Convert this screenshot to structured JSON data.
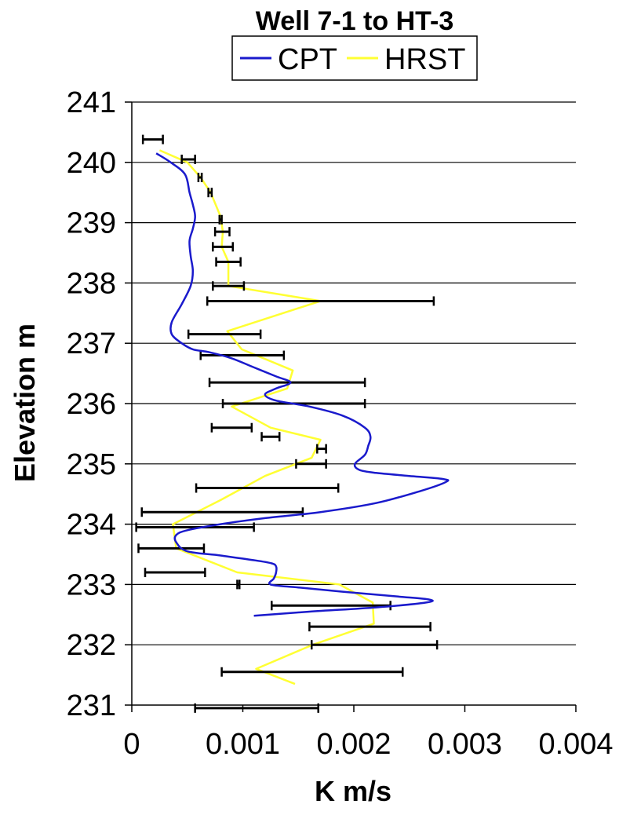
{
  "chart_data": {
    "type": "line",
    "title": "Well 7-1 to HT-3",
    "xlabel": "K m/s",
    "ylabel": "Elevation m",
    "xlim": [
      0,
      0.004
    ],
    "ylim": [
      231,
      241
    ],
    "x_ticks": [
      "0",
      "0.001",
      "0.002",
      "0.003",
      "0.004"
    ],
    "y_ticks": [
      "231",
      "232",
      "233",
      "234",
      "235",
      "236",
      "237",
      "238",
      "239",
      "240",
      "241"
    ],
    "grid": "horizontal",
    "legend_position": "top",
    "colors": {
      "CPT": "#1a1acc",
      "HRST": "#ffff33",
      "error_bars": "#000000",
      "grid": "#000000"
    },
    "series": [
      {
        "name": "CPT",
        "x": [
          0.00022,
          0.00035,
          0.00048,
          0.00052,
          0.00055,
          0.00057,
          0.00055,
          0.00052,
          0.00053,
          0.00055,
          0.00053,
          0.00045,
          0.00036,
          0.00036,
          0.00045,
          0.00055,
          0.0007,
          0.0009,
          0.0011,
          0.0013,
          0.00143,
          0.0013,
          0.0012,
          0.0013,
          0.0016,
          0.0019,
          0.0021,
          0.00215,
          0.00213,
          0.0021,
          0.00201,
          0.00205,
          0.0022,
          0.0025,
          0.0028,
          0.00283,
          0.0026,
          0.0022,
          0.0017,
          0.0012,
          0.0008,
          0.0005,
          0.0004,
          0.0004,
          0.0005,
          0.0008,
          0.00111,
          0.00126,
          0.0013,
          0.0013,
          0.00128,
          0.00125,
          0.0015,
          0.0019,
          0.0024,
          0.00268,
          0.00265,
          0.0022,
          0.0016,
          0.0011
        ],
        "y": [
          240.15,
          240.0,
          239.8,
          239.5,
          239.3,
          239.1,
          238.9,
          238.7,
          238.45,
          238.2,
          237.95,
          237.65,
          237.35,
          237.15,
          237.0,
          236.9,
          236.85,
          236.75,
          236.6,
          236.45,
          236.35,
          236.25,
          236.15,
          236.05,
          235.95,
          235.8,
          235.6,
          235.45,
          235.3,
          235.15,
          235.0,
          234.9,
          234.85,
          234.8,
          234.75,
          234.7,
          234.55,
          234.35,
          234.2,
          234.1,
          234.0,
          233.9,
          233.82,
          233.7,
          233.55,
          233.48,
          233.4,
          233.35,
          233.3,
          233.2,
          233.1,
          233.0,
          232.95,
          232.88,
          232.8,
          232.75,
          232.7,
          232.62,
          232.55,
          232.48
        ]
      },
      {
        "name": "HRST",
        "x": [
          0.00025,
          0.0005,
          0.00062,
          0.00071,
          0.0008,
          0.00082,
          0.00081,
          0.00087,
          0.00087,
          0.0017,
          0.00086,
          0.00099,
          0.00145,
          0.0014,
          0.0009,
          0.00125,
          0.0017,
          0.00162,
          0.0012,
          0.0008,
          0.00037,
          0.0004,
          0.00095,
          0.00187,
          0.00217,
          0.00218,
          0.00163,
          0.00112,
          0.00147
        ],
        "y": [
          240.2,
          240.0,
          239.75,
          239.5,
          239.1,
          238.85,
          238.6,
          238.35,
          237.95,
          237.7,
          237.2,
          236.9,
          236.55,
          236.25,
          235.95,
          235.6,
          235.4,
          235.1,
          234.8,
          234.4,
          234.0,
          233.6,
          233.2,
          233.0,
          232.7,
          232.35,
          232.0,
          231.6,
          231.35
        ]
      }
    ],
    "error_bars": {
      "y": [
        240.38,
        240.05,
        239.75,
        239.5,
        239.05,
        238.85,
        238.6,
        238.35,
        237.95,
        237.7,
        237.15,
        236.8,
        236.35,
        236.0,
        235.6,
        235.45,
        235.25,
        235.0,
        234.6,
        234.2,
        233.95,
        233.6,
        233.2,
        233.0,
        232.65,
        232.3,
        232.0,
        231.55,
        230.95
      ],
      "x_low": [
        0.0001,
        0.00045,
        0.0006,
        0.00069,
        0.00079,
        0.00075,
        0.00073,
        0.00076,
        0.00073,
        0.00068,
        0.00051,
        0.00062,
        0.0007,
        0.00082,
        0.00072,
        0.00117,
        0.00167,
        0.00148,
        0.00058,
        9e-05,
        4e-05,
        6e-05,
        0.00012,
        0.00095,
        0.00126,
        0.0016,
        0.00162,
        0.00081,
        0.00057
      ],
      "x_high": [
        0.00028,
        0.00057,
        0.00063,
        0.00072,
        0.00081,
        0.00088,
        0.00091,
        0.00098,
        0.00101,
        0.00272,
        0.00116,
        0.00137,
        0.0021,
        0.0021,
        0.00108,
        0.00133,
        0.00175,
        0.00175,
        0.00186,
        0.00154,
        0.0011,
        0.00065,
        0.00066,
        0.00097,
        0.00233,
        0.00269,
        0.00275,
        0.00244,
        0.00168
      ]
    }
  }
}
